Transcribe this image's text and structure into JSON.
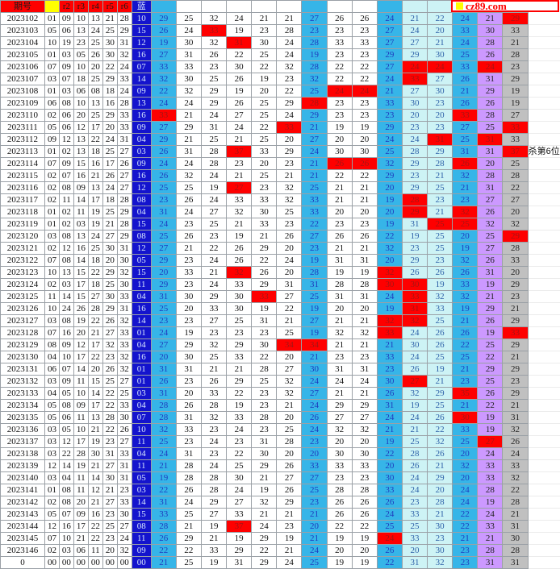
{
  "logo": {
    "text": "cz89.com",
    "accent_color": "#FE0000",
    "square_color": "#FFFF00"
  },
  "chart_data": {
    "type": "table",
    "header": {
      "period_label": "期号",
      "ball_labels": [
        "",
        "r2",
        "r3",
        "r4",
        "r5",
        "r6"
      ],
      "blue_label": "蓝"
    },
    "legend_colors": {
      "w": "#FFFFFF",
      "c": "#36B5E8",
      "p": "#CDF3F5",
      "v": "#CC99FF",
      "g": "#C0C0C0",
      "r": "#FE0000",
      "b": "#1414CD",
      "header_red": "#FE0000",
      "header_yellow": "#FFFF00"
    },
    "default_stat_colors": "c,w,w,w,w,w,c,w,w,c,p,p,c,v,g",
    "rows": [
      {
        "p": "2023102",
        "balls": [
          "01",
          "09",
          "10",
          "13",
          "21",
          "28"
        ],
        "b": "10",
        "s": "29,25,32,24,21,21,27,26,26,24,21,22,24,21,29",
        "sc": "c,w,w,w,w,w,c,w,w,c,p,p,c,v,r"
      },
      {
        "p": "2023103",
        "balls": [
          "05",
          "06",
          "13",
          "24",
          "25",
          "29"
        ],
        "b": "15",
        "s": "26,24,33,19,23,28,23,23,23,27,24,20,33,30,33",
        "sc": "c,w,r,w,w,w,c,w,w,c,p,p,c,v,g"
      },
      {
        "p": "2023104",
        "balls": [
          "10",
          "19",
          "23",
          "25",
          "30",
          "31"
        ],
        "b": "12",
        "s": "19,30,32,31,30,24,28,33,33,27,27,21,24,28,21",
        "sc": "c,w,w,r,w,w,c,w,w,c,p,p,c,v,g"
      },
      {
        "p": "2023105",
        "balls": [
          "01",
          "03",
          "05",
          "26",
          "30",
          "32"
        ],
        "b": "16",
        "s": "27,31,26,22,25,24,19,23,23,29,29,30,25,26,28"
      },
      {
        "p": "2023106",
        "balls": [
          "07",
          "09",
          "10",
          "20",
          "22",
          "24"
        ],
        "b": "07",
        "s": "33,33,23,30,22,32,28,22,22,27,24,24,33,24,23",
        "sc": "c,w,w,w,w,w,c,w,w,c,r,r,c,r,g"
      },
      {
        "p": "2023107",
        "balls": [
          "03",
          "07",
          "18",
          "25",
          "29",
          "33"
        ],
        "b": "14",
        "s": "32,30,25,26,19,23,32,22,22,24,33,27,26,31,29",
        "sc": "c,w,w,w,w,w,c,w,w,c,r,p,c,v,g"
      },
      {
        "p": "2023108",
        "balls": [
          "01",
          "03",
          "06",
          "08",
          "18",
          "24"
        ],
        "b": "09",
        "s": "22,32,29,19,20,22,25,24,24,21,27,30,21,29,19",
        "sc": "c,w,w,w,w,w,c,r,r,c,p,p,c,v,g"
      },
      {
        "p": "2023109",
        "balls": [
          "06",
          "08",
          "10",
          "13",
          "16",
          "28"
        ],
        "b": "13",
        "s": "24,24,29,26,25,29,28,23,23,33,30,23,26,26,19",
        "sc": "c,w,w,w,w,w,r,w,w,c,p,p,c,v,g"
      },
      {
        "p": "2023110",
        "balls": [
          "02",
          "06",
          "20",
          "25",
          "29",
          "33"
        ],
        "b": "16",
        "s": "33,21,24,27,25,24,29,23,23,23,20,20,33,28,27",
        "sc": "r,w,w,w,w,w,c,w,w,c,p,p,r,v,g"
      },
      {
        "p": "2023111",
        "balls": [
          "05",
          "06",
          "12",
          "17",
          "20",
          "33"
        ],
        "b": "09",
        "s": "27,29,31,24,22,33,21,19,19,29,23,23,27,25,33",
        "sc": "c,w,w,w,w,r,c,w,w,c,p,p,c,v,r"
      },
      {
        "p": "2023112",
        "balls": [
          "09",
          "12",
          "13",
          "22",
          "24",
          "31"
        ],
        "b": "04",
        "s": "29,21,25,21,25,20,27,20,20,24,24,31,25,31,33",
        "sc": "c,w,w,w,w,w,c,w,w,c,p,r,c,r,g"
      },
      {
        "p": "2023113",
        "balls": [
          "01",
          "02",
          "13",
          "18",
          "25",
          "27"
        ],
        "b": "03",
        "s": "26,31,28,37,33,29,24,30,30,25,28,29,31,31,37",
        "sc": "c,w,w,r,w,w,c,w,w,c,p,p,c,v,r",
        "note": "杀第6位"
      },
      {
        "p": "2023114",
        "balls": [
          "07",
          "09",
          "15",
          "16",
          "17",
          "26"
        ],
        "b": "09",
        "s": "24,24,28,23,20,23,21,26,26,32,29,28,26,20,25",
        "sc": "c,w,w,w,w,w,c,r,r,c,p,p,r,v,g"
      },
      {
        "p": "2023115",
        "balls": [
          "02",
          "07",
          "16",
          "21",
          "26",
          "27"
        ],
        "b": "16",
        "s": "26,32,24,21,25,21,21,22,22,29,23,21,32,28,28"
      },
      {
        "p": "2023116",
        "balls": [
          "02",
          "08",
          "09",
          "13",
          "24",
          "27"
        ],
        "b": "12",
        "s": "25,25,19,27,23,32,25,21,21,20,29,25,21,31,22",
        "sc": "c,w,w,r,w,w,c,w,w,c,p,p,c,v,g"
      },
      {
        "p": "2023117",
        "balls": [
          "02",
          "11",
          "14",
          "17",
          "18",
          "28"
        ],
        "b": "08",
        "s": "23,26,24,33,33,32,33,21,21,19,28,23,23,27,27",
        "sc": "c,w,w,w,w,w,c,w,w,c,r,p,c,v,g"
      },
      {
        "p": "2023118",
        "balls": [
          "01",
          "02",
          "11",
          "19",
          "25",
          "29"
        ],
        "b": "04",
        "s": "31,24,27,32,30,25,33,20,20,20,29,21,32,26,20",
        "sc": "c,w,w,w,w,w,c,w,w,c,r,p,r,v,g"
      },
      {
        "p": "2023119",
        "balls": [
          "01",
          "02",
          "03",
          "19",
          "21",
          "28"
        ],
        "b": "15",
        "s": "24,23,25,21,33,23,22,23,23,19,31,25,25,32,32",
        "sc": "c,w,w,w,w,w,c,w,w,c,p,r,r,v,g"
      },
      {
        "p": "2023120",
        "balls": [
          "03",
          "08",
          "13",
          "24",
          "27",
          "29"
        ],
        "b": "08",
        "s": "25,26,23,19,21,26,27,26,26,22,19,25,20,25,29",
        "sc": "c,w,w,w,w,w,c,w,w,c,p,p,c,v,r"
      },
      {
        "p": "2023121",
        "balls": [
          "02",
          "12",
          "16",
          "25",
          "30",
          "31"
        ],
        "b": "12",
        "s": "27,21,22,26,29,20,23,21,21,32,23,25,19,27,28"
      },
      {
        "p": "2023122",
        "balls": [
          "07",
          "08",
          "14",
          "18",
          "20",
          "30"
        ],
        "b": "05",
        "s": "29,23,24,26,22,24,19,31,31,20,29,23,32,26,33"
      },
      {
        "p": "2023123",
        "balls": [
          "10",
          "13",
          "15",
          "22",
          "29",
          "32"
        ],
        "b": "15",
        "s": "20,33,21,32,26,20,28,19,19,32,26,26,26,31,20",
        "sc": "c,w,w,r,w,w,c,w,w,r,p,p,c,v,g"
      },
      {
        "p": "2023124",
        "balls": [
          "02",
          "03",
          "17",
          "18",
          "25",
          "30"
        ],
        "b": "11",
        "s": "29,23,24,33,29,31,31,28,28,30,30,19,33,19,29",
        "sc": "c,w,w,w,w,w,c,w,w,r,r,p,c,v,g"
      },
      {
        "p": "2023125",
        "balls": [
          "11",
          "14",
          "15",
          "27",
          "30",
          "33"
        ],
        "b": "04",
        "s": "31,30,29,30,33,27,25,31,31,24,33,32,32,21,23",
        "sc": "c,w,w,w,r,w,c,w,w,c,r,p,c,v,g"
      },
      {
        "p": "2023126",
        "balls": [
          "10",
          "24",
          "26",
          "28",
          "29",
          "31"
        ],
        "b": "16",
        "s": "25,20,33,30,19,22,19,20,20,19,31,33,19,29,21",
        "sc": "c,w,w,w,w,w,c,w,w,c,r,p,c,v,g"
      },
      {
        "p": "2023127",
        "balls": [
          "03",
          "08",
          "19",
          "22",
          "26",
          "32"
        ],
        "b": "14",
        "s": "23,23,27,25,31,21,27,21,21,32,32,25,21,26,29",
        "sc": "c,w,w,w,w,w,c,w,w,r,r,p,c,v,g"
      },
      {
        "p": "2023128",
        "balls": [
          "07",
          "16",
          "20",
          "21",
          "27",
          "33"
        ],
        "b": "01",
        "s": "24,19,23,23,23,25,19,32,32,33,24,26,26,19,33",
        "sc": "c,w,w,w,w,w,c,w,w,r,p,p,c,v,r"
      },
      {
        "p": "2023129",
        "balls": [
          "08",
          "09",
          "12",
          "17",
          "32",
          "33"
        ],
        "b": "04",
        "s": "27,29,32,29,30,34,34,21,21,21,30,26,22,25,29",
        "sc": "c,w,w,w,w,r,r,w,w,c,p,p,c,v,g"
      },
      {
        "p": "2023130",
        "balls": [
          "04",
          "10",
          "17",
          "22",
          "23",
          "32"
        ],
        "b": "16",
        "s": "20,30,25,33,22,20,21,23,23,33,24,25,25,22,21"
      },
      {
        "p": "2023131",
        "balls": [
          "06",
          "07",
          "14",
          "20",
          "26",
          "32"
        ],
        "b": "01",
        "s": "31,31,21,21,28,27,30,31,31,23,26,19,21,29,29"
      },
      {
        "p": "2023132",
        "balls": [
          "03",
          "09",
          "11",
          "15",
          "25",
          "27"
        ],
        "b": "01",
        "s": "26,23,26,29,25,32,24,24,24,30,27,21,23,25,23",
        "sc": "c,w,w,w,w,w,c,w,w,c,r,p,c,v,g"
      },
      {
        "p": "2023133",
        "balls": [
          "04",
          "05",
          "10",
          "14",
          "22",
          "25"
        ],
        "b": "03",
        "s": "31,20,33,22,23,32,27,21,21,26,32,29,35,26,29",
        "sc": "c,w,w,w,w,w,c,w,w,c,p,p,r,v,g"
      },
      {
        "p": "2023134",
        "balls": [
          "05",
          "08",
          "09",
          "17",
          "22",
          "33"
        ],
        "b": "04",
        "s": "28,26,28,19,23,21,24,29,29,31,19,25,21,22,21"
      },
      {
        "p": "2023135",
        "balls": [
          "05",
          "06",
          "11",
          "13",
          "28",
          "30"
        ],
        "b": "07",
        "s": "28,31,32,33,28,20,26,27,27,24,24,26,30,19,31",
        "sc": "c,w,w,w,w,w,c,w,w,c,p,p,r,v,g"
      },
      {
        "p": "2023136",
        "balls": [
          "03",
          "05",
          "10",
          "21",
          "22",
          "26"
        ],
        "b": "10",
        "s": "32,33,23,24,23,25,24,32,32,21,21,22,33,19,32"
      },
      {
        "p": "2023137",
        "balls": [
          "03",
          "12",
          "17",
          "19",
          "23",
          "27"
        ],
        "b": "11",
        "s": "25,23,24,23,31,28,23,20,20,19,25,32,25,27,26",
        "sc": "c,w,w,w,w,w,c,w,w,c,p,p,c,r,g"
      },
      {
        "p": "2023138",
        "balls": [
          "03",
          "22",
          "28",
          "30",
          "31",
          "33"
        ],
        "b": "04",
        "s": "24,31,23,22,30,20,20,30,30,22,28,26,20,24,24"
      },
      {
        "p": "2023139",
        "balls": [
          "12",
          "14",
          "19",
          "21",
          "27",
          "31"
        ],
        "b": "11",
        "s": "21,28,24,25,29,26,33,33,33,20,26,21,32,33,33"
      },
      {
        "p": "2023140",
        "balls": [
          "03",
          "04",
          "11",
          "14",
          "30",
          "31"
        ],
        "b": "05",
        "s": "19,28,28,30,21,27,27,23,23,30,24,29,20,33,32"
      },
      {
        "p": "2023141",
        "balls": [
          "01",
          "08",
          "11",
          "12",
          "21",
          "23"
        ],
        "b": "03",
        "s": "22,26,28,24,19,26,25,28,28,33,24,20,24,28,22"
      },
      {
        "p": "2023142",
        "balls": [
          "02",
          "08",
          "20",
          "21",
          "27",
          "33"
        ],
        "b": "14",
        "s": "31,24,29,27,32,29,23,26,26,26,23,28,24,19,28"
      },
      {
        "p": "2023143",
        "balls": [
          "05",
          "07",
          "09",
          "16",
          "23",
          "30"
        ],
        "b": "15",
        "s": "33,25,27,33,21,21,21,26,26,24,33,21,22,24,21"
      },
      {
        "p": "2023144",
        "balls": [
          "12",
          "16",
          "17",
          "22",
          "25",
          "27"
        ],
        "b": "08",
        "s": "28,21,19,37,24,23,20,22,22,25,25,30,22,33,31",
        "sc": "c,w,w,r,w,w,c,w,w,c,p,p,c,v,g"
      },
      {
        "p": "2023145",
        "balls": [
          "07",
          "10",
          "21",
          "22",
          "23",
          "24"
        ],
        "b": "11",
        "s": "26,29,21,19,29,19,21,19,19,24,33,23,21,21,30",
        "sc": "c,w,w,w,w,w,c,w,w,r,p,p,c,v,g"
      },
      {
        "p": "2023146",
        "balls": [
          "02",
          "03",
          "06",
          "11",
          "20",
          "32"
        ],
        "b": "09",
        "s": "22,22,33,29,22,21,24,20,20,26,20,30,23,28,28"
      },
      {
        "p": "0",
        "balls": [
          "00",
          "00",
          "00",
          "00",
          "00",
          "00"
        ],
        "b": "00",
        "s": "21,25,19,31,29,24,25,19,19,22,31,32,23,31,31"
      }
    ]
  }
}
